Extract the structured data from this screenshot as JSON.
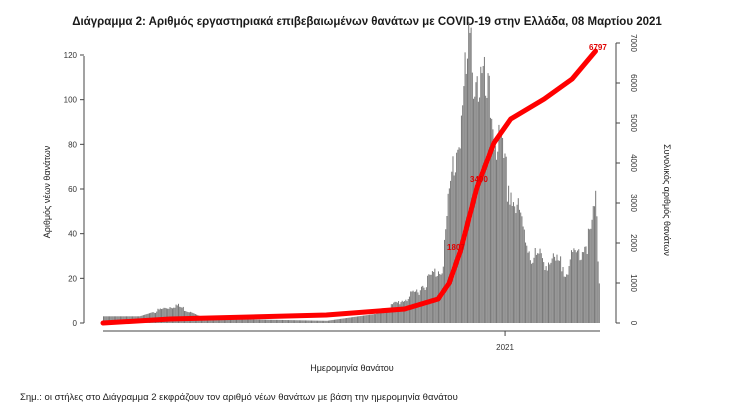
{
  "page": {
    "title": "Διάγραμμα 2: Αριθμός εργαστηριακά επιβεβαιωμένων θανάτων με COVID-19 στην Ελλάδα, 08 Μαρτίου 2021",
    "footnote": "Σημ.: οι στήλες στο Διάγραμμα 2 εκφράζουν τον αριθμό νέων θανάτων με βάση την ημερομηνία θανάτου"
  },
  "chart_data": {
    "type": "bar",
    "title": "Διάγραμμα 2: Αριθμός εργαστηριακά επιβεβαιωμένων θανάτων με COVID-19 στην Ελλάδα, 08 Μαρτίου 2021",
    "xlabel": "Ημερομηνία θανάτου",
    "ylabel": "Αριθμός νέων θανάτων",
    "y2label": "Συνολικός αριθμός θανάτων",
    "ylim": [
      0,
      125
    ],
    "y2lim": [
      0,
      7000
    ],
    "yticks": [
      "0",
      "20",
      "40",
      "60",
      "80",
      "100",
      "120"
    ],
    "y2ticks": [
      "0",
      "1000",
      "2000",
      "3000",
      "4000",
      "5000",
      "6000",
      "7000"
    ],
    "xtick_label": "2021",
    "grid": false,
    "colors": {
      "bars": "#7a7a7a",
      "cumulative": "#ff0000",
      "annotation": "#e00000"
    },
    "series": [
      {
        "kind": "bar",
        "segments": [
          {
            "from": 3,
            "to": 3,
            "days": 30
          },
          {
            "from": 3,
            "to": 8,
            "days": 30
          },
          {
            "from": 8,
            "to": 2,
            "days": 25
          },
          {
            "from": 2,
            "to": 1,
            "days": 100
          },
          {
            "from": 1,
            "to": 4,
            "days": 40
          },
          {
            "from": 4,
            "to": 12,
            "days": 30
          },
          {
            "from": 12,
            "to": 25,
            "days": 25
          },
          {
            "from": 25,
            "to": 70,
            "days": 10
          },
          {
            "from": 70,
            "to": 120,
            "days": 14
          },
          {
            "from": 120,
            "to": 95,
            "days": 16
          },
          {
            "from": 95,
            "to": 62,
            "days": 15
          },
          {
            "from": 62,
            "to": 30,
            "days": 20
          },
          {
            "from": 30,
            "to": 25,
            "days": 28
          },
          {
            "from": 25,
            "to": 38,
            "days": 20
          },
          {
            "from": 38,
            "to": 52,
            "days": 4
          },
          {
            "from": 52,
            "to": 20,
            "days": 4
          }
        ]
      },
      {
        "kind": "line",
        "points": [
          [
            0,
            0
          ],
          [
            60,
            100
          ],
          [
            200,
            200
          ],
          [
            270,
            350
          ],
          [
            300,
            600
          ],
          [
            310,
            1000
          ],
          [
            320,
            1800
          ],
          [
            335,
            3400
          ],
          [
            350,
            4500
          ],
          [
            365,
            5100
          ],
          [
            395,
            5600
          ],
          [
            420,
            6100
          ],
          [
            441,
            6797
          ]
        ]
      }
    ],
    "annotations": [
      "1807",
      "3400",
      "6797"
    ],
    "xtick_day": 360
  }
}
